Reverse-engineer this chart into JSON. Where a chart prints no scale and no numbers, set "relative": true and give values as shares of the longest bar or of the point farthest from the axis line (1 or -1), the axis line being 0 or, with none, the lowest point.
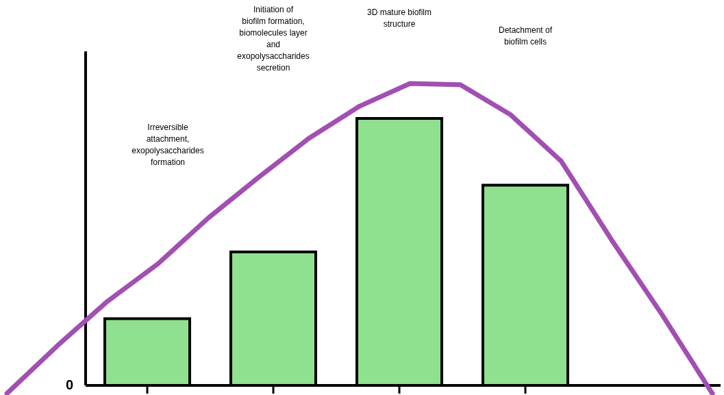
{
  "chart_data": [
    {
      "type": "bar",
      "relative": true,
      "categories": [
        null,
        null,
        null,
        null
      ],
      "color": "#8fe08f",
      "values": [
        0.25,
        0.5,
        1,
        0.75
      ],
      "annotations": [
        "Irreversible attachment, exopolysaccharides formation",
        "Initiation of biofilm formation, biomolecules layer and exopolysaccharides secretion",
        "3D mature biofilm structure",
        "Detachment of biofilm cells",
        "0"
      ]
    },
    {
      "type": "line",
      "relative": true,
      "categories": [
        null,
        null,
        null,
        null,
        null,
        null,
        null,
        null,
        null,
        null,
        null,
        null,
        null,
        null,
        null
      ],
      "color": "#a24fb3",
      "values": [
        -0.027,
        0.131,
        0.279,
        0.403,
        0.555,
        0.69,
        0.819,
        0.925,
        1,
        0.996,
        0.896,
        0.743,
        0.482,
        0.235,
        -0.027
      ]
    }
  ]
}
